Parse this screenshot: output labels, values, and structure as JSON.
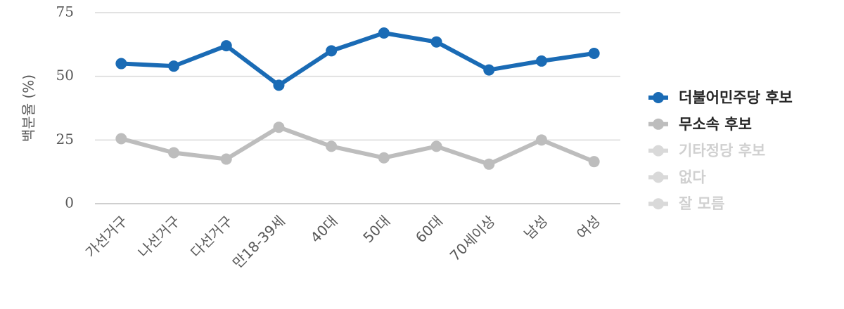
{
  "chart_data": {
    "type": "line",
    "y_label": "백분율 (%)",
    "categories": [
      "가선거구",
      "나선거구",
      "다선거구",
      "만18-39세",
      "40대",
      "50대",
      "60대",
      "70세이상",
      "남성",
      "여성"
    ],
    "series": [
      {
        "name": "더불어민주당 후보",
        "color": "#1a6bb5",
        "values": [
          55,
          54,
          62,
          46.5,
          60,
          67,
          63.5,
          52.5,
          56,
          59
        ]
      },
      {
        "name": "무소속 후보",
        "color": "#bdbdbd",
        "values": [
          25.5,
          20,
          17.5,
          30,
          22.5,
          18,
          22.5,
          15.5,
          25,
          16.5
        ]
      },
      {
        "name": "기타정당 후보",
        "color": "#d9d9d9",
        "hidden": true,
        "values": [
          null,
          null,
          null,
          null,
          null,
          null,
          null,
          null,
          null,
          null
        ]
      },
      {
        "name": "없다",
        "color": "#d9d9d9",
        "hidden": true,
        "values": [
          null,
          null,
          null,
          null,
          null,
          null,
          null,
          null,
          null,
          null
        ]
      },
      {
        "name": "잘 모름",
        "color": "#d9d9d9",
        "hidden": true,
        "values": [
          null,
          null,
          null,
          null,
          null,
          null,
          null,
          null,
          null,
          null
        ]
      }
    ],
    "ylim": [
      0,
      75
    ],
    "yticks": [
      0,
      25,
      50,
      75
    ],
    "grid": true,
    "legend": "right"
  }
}
